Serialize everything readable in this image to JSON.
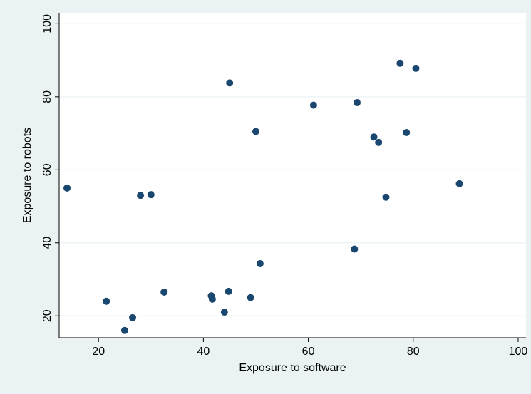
{
  "chart_data": {
    "type": "scatter",
    "title": "",
    "xlabel": "Exposure to software",
    "ylabel": "Exposure to robots",
    "xlim": [
      12.5,
      101.5
    ],
    "ylim": [
      14,
      103
    ],
    "xticks": [
      20,
      40,
      60,
      80,
      100
    ],
    "yticks": [
      20,
      40,
      60,
      80,
      100
    ],
    "grid": "horizontal",
    "marker_color": "#1a476f",
    "background_color": "#eaf2f3",
    "plot_background_color": "#ffffff",
    "gridline_color": "#eaf2f3",
    "points": [
      {
        "x": 14,
        "y": 55
      },
      {
        "x": 21.5,
        "y": 24
      },
      {
        "x": 25,
        "y": 16
      },
      {
        "x": 26.5,
        "y": 19.5
      },
      {
        "x": 28,
        "y": 53
      },
      {
        "x": 30,
        "y": 53.2
      },
      {
        "x": 32.5,
        "y": 26.5
      },
      {
        "x": 41.5,
        "y": 25.5
      },
      {
        "x": 41.7,
        "y": 24.6
      },
      {
        "x": 44,
        "y": 21
      },
      {
        "x": 44.8,
        "y": 26.7
      },
      {
        "x": 45,
        "y": 83.8
      },
      {
        "x": 49,
        "y": 25
      },
      {
        "x": 50,
        "y": 70.5
      },
      {
        "x": 50.8,
        "y": 34.3
      },
      {
        "x": 61,
        "y": 77.7
      },
      {
        "x": 68.8,
        "y": 38.3
      },
      {
        "x": 69.3,
        "y": 78.4
      },
      {
        "x": 72.5,
        "y": 69
      },
      {
        "x": 73.4,
        "y": 67.5
      },
      {
        "x": 74.8,
        "y": 52.5
      },
      {
        "x": 77.5,
        "y": 89.2
      },
      {
        "x": 78.7,
        "y": 70.2
      },
      {
        "x": 80.5,
        "y": 87.8
      },
      {
        "x": 88.8,
        "y": 56.2
      }
    ]
  }
}
